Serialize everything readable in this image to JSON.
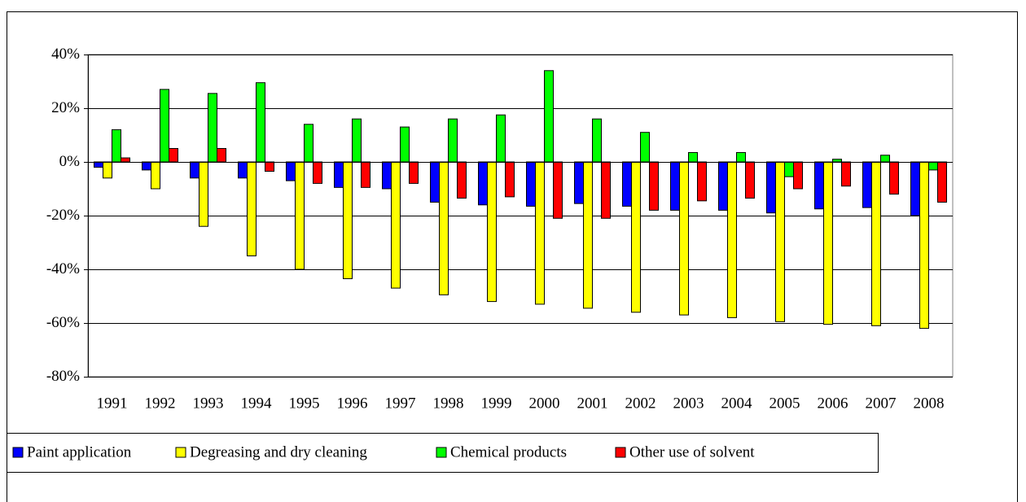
{
  "chart_data": {
    "type": "bar",
    "categories": [
      "1991",
      "1992",
      "1993",
      "1994",
      "1995",
      "1996",
      "1997",
      "1998",
      "1999",
      "2000",
      "2001",
      "2002",
      "2003",
      "2004",
      "2005",
      "2006",
      "2007",
      "2008"
    ],
    "series": [
      {
        "name": "Paint application",
        "color": "#0000ff",
        "values": [
          -2,
          -3,
          -6,
          -6,
          -7,
          -9.5,
          -10,
          -15,
          -16,
          -16.5,
          -15.5,
          -16.5,
          -18,
          -18,
          -19,
          -17.5,
          -17,
          -20
        ]
      },
      {
        "name": "Degreasing and dry cleaning",
        "color": "#ffff00",
        "values": [
          -6,
          -10,
          -24,
          -35,
          -40,
          -43.5,
          -47,
          -49.5,
          -52,
          -53,
          -54.5,
          -56,
          -57,
          -58,
          -59.5,
          -60.5,
          -61,
          -62
        ]
      },
      {
        "name": "Chemical products",
        "color": "#00ff00",
        "values": [
          12,
          27,
          25.5,
          29.5,
          14,
          16,
          13,
          16,
          17.5,
          34,
          16,
          11,
          3.5,
          3.5,
          -5.5,
          1,
          2.5,
          -3
        ]
      },
      {
        "name": "Other use of solvent",
        "color": "#ff0000",
        "values": [
          1.5,
          5,
          5,
          -3.5,
          -8,
          -9.5,
          -8,
          -13.5,
          -13,
          -21,
          -21,
          -18,
          -14.5,
          -13.5,
          -10,
          -9,
          -12,
          -15
        ]
      }
    ],
    "ylim": [
      -80,
      40
    ],
    "yticks": [
      {
        "value": -80,
        "label": "-80%"
      },
      {
        "value": -60,
        "label": "-60%"
      },
      {
        "value": -40,
        "label": "-40%"
      },
      {
        "value": -20,
        "label": "-20%"
      },
      {
        "value": 0,
        "label": "0%"
      },
      {
        "value": 20,
        "label": "20%"
      },
      {
        "value": 40,
        "label": "40%"
      }
    ],
    "grid": true,
    "legend": "bottom"
  }
}
